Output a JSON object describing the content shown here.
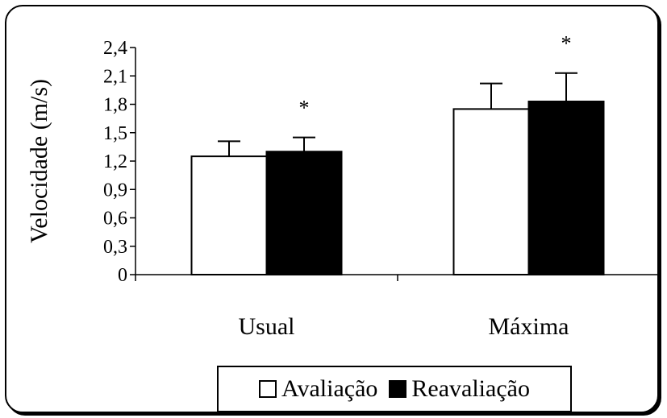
{
  "chart_data": {
    "type": "bar",
    "categories": [
      "Usual",
      "Máxima"
    ],
    "series": [
      {
        "name": "Avaliação",
        "values": [
          1.25,
          1.75
        ],
        "errors": [
          0.16,
          0.27
        ],
        "color": "#ffffff"
      },
      {
        "name": "Reavaliação",
        "values": [
          1.3,
          1.83
        ],
        "errors": [
          0.15,
          0.3
        ],
        "color": "#000000"
      }
    ],
    "annotations": [
      "*",
      "*"
    ],
    "ylabel": "Velocidade (m/s)",
    "xlabel": "",
    "title": "",
    "ylim": [
      0,
      2.4
    ],
    "yticks": [
      "0",
      "0,3",
      "0,6",
      "0,9",
      "1,2",
      "1,5",
      "1,8",
      "2,1",
      "2,4"
    ],
    "grid": false,
    "legend_position": "bottom"
  }
}
